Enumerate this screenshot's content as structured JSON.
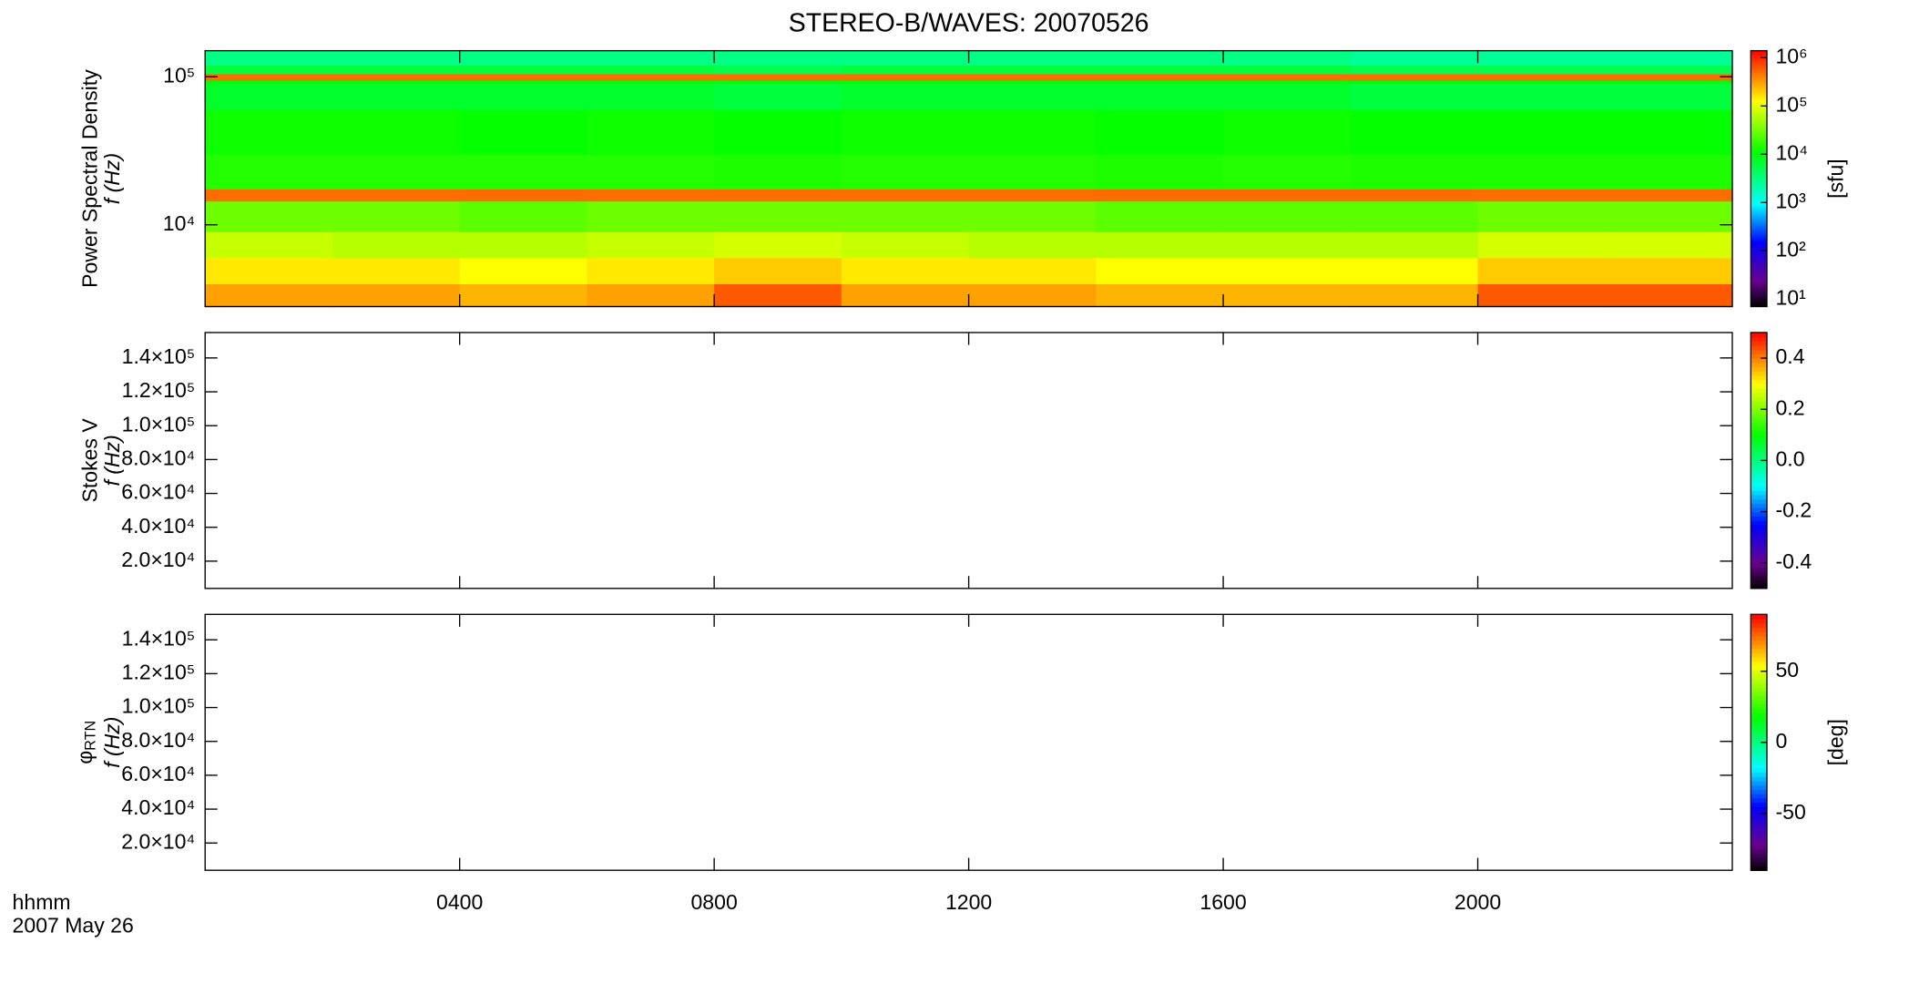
{
  "chart_data": [
    {
      "type": "heatmap",
      "title": "STEREO-B/WAVES: 20070526",
      "y_label": [
        "Power Spectral Density",
        "f (Hz)"
      ],
      "log_y": true,
      "ylim": [
        2800,
        150000
      ],
      "yticks": [
        {
          "value": 10000,
          "label": "10⁴"
        },
        {
          "value": 100000,
          "label": "10⁵"
        }
      ],
      "xlim": [
        0,
        24
      ],
      "xticks": [
        4,
        8,
        12,
        16,
        20
      ],
      "colormap": "rainbow",
      "x_edges": [
        0,
        2,
        4,
        6,
        8,
        10,
        12,
        14,
        16,
        18,
        20,
        22,
        24
      ],
      "y_edges": [
        2800,
        4000,
        6000,
        9000,
        14500,
        17500,
        30000,
        60000,
        90000,
        95000,
        105000,
        120000,
        150000
      ],
      "z": [
        [
          300000,
          300000,
          250000,
          300000,
          600000,
          300000,
          300000,
          250000,
          250000,
          250000,
          600000,
          600000
        ],
        [
          150000,
          150000,
          120000,
          150000,
          200000,
          150000,
          150000,
          120000,
          120000,
          120000,
          200000,
          200000
        ],
        [
          70000,
          60000,
          60000,
          70000,
          80000,
          70000,
          60000,
          60000,
          60000,
          60000,
          80000,
          80000
        ],
        [
          30000,
          30000,
          25000,
          30000,
          30000,
          30000,
          30000,
          25000,
          25000,
          25000,
          30000,
          30000
        ],
        [
          500000,
          500000,
          500000,
          500000,
          500000,
          500000,
          500000,
          500000,
          500000,
          500000,
          500000,
          500000
        ],
        [
          15000,
          15000,
          15000,
          15000,
          14000,
          15000,
          15000,
          14000,
          15000,
          14000,
          14000,
          14000
        ],
        [
          12000,
          12000,
          11000,
          12000,
          11000,
          12000,
          12000,
          11000,
          12000,
          11000,
          11000,
          11000
        ],
        [
          7000,
          7000,
          7000,
          7000,
          6000,
          7000,
          7000,
          7000,
          7000,
          6000,
          6000,
          6000
        ],
        [
          10000,
          10000,
          10000,
          10000,
          10000,
          10000,
          10000,
          10000,
          10000,
          10000,
          10000,
          10000
        ],
        [
          500000,
          500000,
          500000,
          500000,
          500000,
          500000,
          500000,
          500000,
          500000,
          500000,
          500000,
          500000
        ],
        [
          6000,
          6000,
          6000,
          6000,
          5000,
          6000,
          6000,
          6000,
          6000,
          5000,
          5000,
          5000
        ],
        [
          3000,
          3000,
          3000,
          3000,
          3000,
          3000,
          3000,
          3000,
          3000,
          2500,
          2500,
          2500
        ]
      ],
      "colorbar": {
        "log": true,
        "clim": [
          7,
          1400000
        ],
        "label": "[sfu]",
        "ticks": [
          {
            "value": 10,
            "label": "10¹"
          },
          {
            "value": 100,
            "label": "10²"
          },
          {
            "value": 1000,
            "label": "10³"
          },
          {
            "value": 10000,
            "label": "10⁴"
          },
          {
            "value": 100000,
            "label": "10⁵"
          },
          {
            "value": 1000000,
            "label": "10⁶"
          }
        ]
      }
    },
    {
      "type": "heatmap",
      "y_label": [
        "Stokes V",
        "f (Hz)"
      ],
      "log_y": false,
      "ylim": [
        3900,
        155000
      ],
      "yticks": [
        {
          "value": 140000,
          "label": "1.4×10⁵"
        },
        {
          "value": 120000,
          "label": "1.2×10⁵"
        },
        {
          "value": 100000,
          "label": "1.0×10⁵"
        },
        {
          "value": 80000,
          "label": "8.0×10⁴"
        },
        {
          "value": 60000,
          "label": "6.0×10⁴"
        },
        {
          "value": 40000,
          "label": "4.0×10⁴"
        },
        {
          "value": 20000,
          "label": "2.0×10⁴"
        }
      ],
      "xlim": [
        0,
        24
      ],
      "xticks": [
        4,
        8,
        12,
        16,
        20
      ],
      "colorbar": {
        "log": false,
        "clim": [
          -0.5,
          0.5
        ],
        "ticks": [
          0.4,
          0.2,
          {
            "value": 0,
            "label": "0.0"
          },
          -0.2,
          -0.4
        ]
      }
    },
    {
      "type": "heatmap",
      "y_label": [
        "φ",
        "f (Hz)"
      ],
      "y_label_sub": "RTN",
      "log_y": false,
      "ylim": [
        3900,
        155000
      ],
      "yticks": [
        {
          "value": 140000,
          "label": "1.4×10⁵"
        },
        {
          "value": 120000,
          "label": "1.2×10⁵"
        },
        {
          "value": 100000,
          "label": "1.0×10⁵"
        },
        {
          "value": 80000,
          "label": "8.0×10⁴"
        },
        {
          "value": 60000,
          "label": "6.0×10⁴"
        },
        {
          "value": 40000,
          "label": "4.0×10⁴"
        },
        {
          "value": 20000,
          "label": "2.0×10⁴"
        }
      ],
      "xlim": [
        0,
        24
      ],
      "xticks": [
        {
          "value": 4,
          "label": "0400"
        },
        {
          "value": 8,
          "label": "0800"
        },
        {
          "value": 12,
          "label": "1200"
        },
        {
          "value": 16,
          "label": "1600"
        },
        {
          "value": 20,
          "label": "2000"
        }
      ],
      "x_label": [
        "hhmm",
        "2007 May 26"
      ],
      "colorbar": {
        "log": false,
        "clim": [
          -90,
          90
        ],
        "label": "[deg]",
        "ticks": [
          50,
          0,
          -50
        ]
      }
    }
  ]
}
